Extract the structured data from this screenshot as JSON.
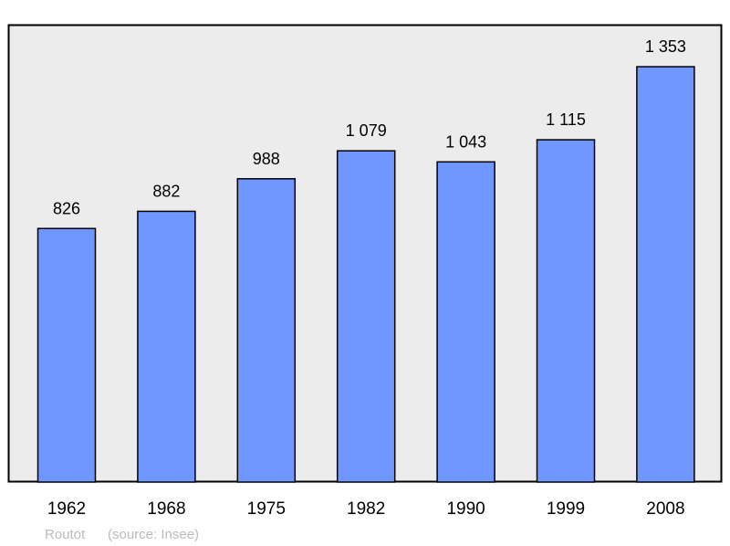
{
  "chart_data": {
    "type": "bar",
    "categories": [
      "1962",
      "1968",
      "1975",
      "1982",
      "1990",
      "1999",
      "2008"
    ],
    "values": [
      826,
      882,
      988,
      1079,
      1043,
      1115,
      1353
    ],
    "data_labels": [
      "826",
      "882",
      "988",
      "1 079",
      "1 043",
      "1 115",
      "1 353"
    ],
    "title": "",
    "xlabel": "",
    "ylabel": "",
    "ylim": [
      0,
      1490
    ],
    "grid": false,
    "colors": {
      "bar": "#7096ff",
      "plot_background": "#ececec",
      "border": "#000000"
    }
  },
  "footer": {
    "place": "Routot",
    "source": "(source: Insee)"
  }
}
